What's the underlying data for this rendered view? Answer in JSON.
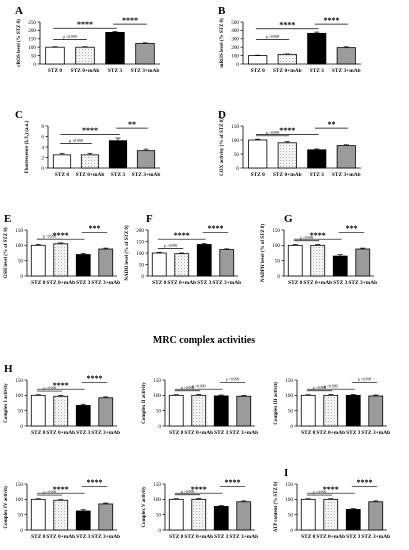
{
  "section_title": "MRC complex activities",
  "chart_data": [
    {
      "type": "bar",
      "panel": "A",
      "ylabel": "cROS level (% STZ 0)",
      "ylim": [
        0,
        250
      ],
      "yticks": [
        0,
        50,
        100,
        150,
        200,
        250
      ],
      "categories": [
        "STZ 0",
        "STZ 0+mAb",
        "STZ 3",
        "STZ 3+mAb"
      ],
      "values": [
        100,
        100,
        188,
        122
      ],
      "errors": [
        3,
        3,
        5,
        4
      ],
      "comparisons": [
        {
          "from": 0,
          "to": 1,
          "label": "p >0.999"
        },
        {
          "from": 0,
          "to": 2,
          "label": "****"
        },
        {
          "from": 2,
          "to": 3,
          "label": "****"
        }
      ]
    },
    {
      "type": "bar",
      "panel": "B",
      "ylabel": "mROS level (% STZ 0)",
      "ylim": [
        0,
        500
      ],
      "yticks": [
        0,
        100,
        200,
        300,
        400,
        500
      ],
      "categories": [
        "STZ 0",
        "STZ 0+mAb",
        "STZ 3",
        "STZ 3+mAb"
      ],
      "values": [
        100,
        115,
        365,
        195
      ],
      "errors": [
        5,
        6,
        15,
        10
      ],
      "comparisons": [
        {
          "from": 0,
          "to": 1,
          "label": "p >0.999"
        },
        {
          "from": 0,
          "to": 2,
          "label": "****"
        },
        {
          "from": 2,
          "to": 3,
          "label": "****"
        }
      ]
    },
    {
      "type": "bar",
      "panel": "C",
      "ylabel": "Fluorescence (Iₑ/I₅) (a.u.)",
      "ylim": [
        0,
        8
      ],
      "yticks": [
        0,
        2,
        4,
        6,
        8
      ],
      "categories": [
        "STZ 0",
        "STZ 0+mAb",
        "STZ 3",
        "STZ 3+mAb"
      ],
      "values": [
        2.5,
        2.5,
        5.2,
        3.3
      ],
      "errors": [
        0.3,
        0.3,
        0.5,
        0.3
      ],
      "comparisons": [
        {
          "from": 0,
          "to": 1,
          "label": "p >0.999"
        },
        {
          "from": 0,
          "to": 2,
          "label": "****"
        },
        {
          "from": 2,
          "to": 3,
          "label": "**"
        }
      ]
    },
    {
      "type": "bar",
      "panel": "D",
      "ylabel": "COX activity (% of STZ 0)",
      "ylim": [
        0,
        150
      ],
      "yticks": [
        0,
        50,
        100,
        150
      ],
      "categories": [
        "STZ 0",
        "STZ 0+mAb",
        "STZ 3",
        "STZ 3+mAb"
      ],
      "values": [
        100,
        90,
        65,
        80
      ],
      "errors": [
        3,
        4,
        3,
        3
      ],
      "comparisons": [
        {
          "from": 0,
          "to": 1,
          "label": "p >0.999"
        },
        {
          "from": 0,
          "to": 2,
          "label": "****"
        },
        {
          "from": 2,
          "to": 3,
          "label": "**"
        }
      ]
    },
    {
      "type": "bar",
      "panel": "E",
      "ylabel": "GSH level (% of STZ 0)",
      "ylim": [
        0,
        150
      ],
      "yticks": [
        0,
        50,
        100,
        150
      ],
      "categories": [
        "STZ 0",
        "STZ 0+mAb",
        "STZ 3",
        "STZ 3+mAb"
      ],
      "values": [
        100,
        105,
        70,
        88
      ],
      "errors": [
        3,
        3,
        4,
        3
      ],
      "comparisons": [
        {
          "from": 0,
          "to": 1,
          "label": "p >0.999"
        },
        {
          "from": 0,
          "to": 2,
          "label": "****"
        },
        {
          "from": 2,
          "to": 3,
          "label": "***"
        }
      ]
    },
    {
      "type": "bar",
      "panel": "F",
      "ylabel": "NADH level (% of STZ 0)",
      "ylim": [
        0,
        200
      ],
      "yticks": [
        0,
        50,
        100,
        150,
        200
      ],
      "categories": [
        "STZ 0",
        "STZ 0+mAb",
        "STZ 3",
        "STZ 3+mAb"
      ],
      "values": [
        100,
        97,
        137,
        115
      ],
      "errors": [
        3,
        3,
        4,
        3
      ],
      "comparisons": [
        {
          "from": 0,
          "to": 1,
          "label": "p >0.999"
        },
        {
          "from": 0,
          "to": 2,
          "label": "****"
        },
        {
          "from": 2,
          "to": 3,
          "label": "****"
        }
      ]
    },
    {
      "type": "bar",
      "panel": "G",
      "ylabel": "NADPH level (% of STZ 0)",
      "ylim": [
        0,
        150
      ],
      "yticks": [
        0,
        50,
        100,
        150
      ],
      "categories": [
        "STZ 0",
        "STZ 0+mAb",
        "STZ 3",
        "STZ 3+mAb"
      ],
      "values": [
        100,
        100,
        65,
        88
      ],
      "errors": [
        3,
        3,
        5,
        3
      ],
      "comparisons": [
        {
          "from": 0,
          "to": 1,
          "label": "p >0.999"
        },
        {
          "from": 0,
          "to": 2,
          "label": "****"
        },
        {
          "from": 2,
          "to": 3,
          "label": "***"
        }
      ]
    },
    {
      "type": "bar",
      "panel": "H",
      "ylabel": "Complex I activity",
      "ylim": [
        0,
        150
      ],
      "yticks": [
        0,
        50,
        100,
        150
      ],
      "categories": [
        "STZ 0",
        "STZ 0+mAb",
        "STZ 3",
        "STZ 3+mAb"
      ],
      "values": [
        100,
        97,
        67,
        92
      ],
      "errors": [
        2,
        3,
        4,
        3
      ],
      "comparisons": [
        {
          "from": 0,
          "to": 1,
          "label": "p >0.999"
        },
        {
          "from": 0,
          "to": 2,
          "label": "****"
        },
        {
          "from": 2,
          "to": 3,
          "label": "****"
        }
      ]
    },
    {
      "type": "bar",
      "panel": "",
      "ylabel": "Complex II activity",
      "ylim": [
        0,
        150
      ],
      "yticks": [
        0,
        50,
        100,
        150
      ],
      "categories": [
        "STZ 0",
        "STZ 0+mAb",
        "STZ 3",
        "STZ 3+mAb"
      ],
      "values": [
        100,
        100,
        98,
        97
      ],
      "errors": [
        2,
        3,
        3,
        3
      ],
      "comparisons": [
        {
          "from": 0,
          "to": 1,
          "label": "p >0.999"
        },
        {
          "from": 0,
          "to": 2,
          "label": "p >0.999"
        },
        {
          "from": 2,
          "to": 3,
          "label": "p >0.999"
        }
      ]
    },
    {
      "type": "bar",
      "panel": "",
      "ylabel": "Complex III activity",
      "ylim": [
        0,
        150
      ],
      "yticks": [
        0,
        50,
        100,
        150
      ],
      "categories": [
        "STZ 0",
        "STZ 0+mAb",
        "STZ 3",
        "STZ 3+mAb"
      ],
      "values": [
        100,
        100,
        100,
        98
      ],
      "errors": [
        2,
        3,
        3,
        3
      ],
      "comparisons": [
        {
          "from": 0,
          "to": 1,
          "label": "p >0.999"
        },
        {
          "from": 0,
          "to": 2,
          "label": "p >0.999"
        },
        {
          "from": 2,
          "to": 3,
          "label": "p >0.999"
        }
      ]
    },
    {
      "type": "bar",
      "panel": "",
      "ylabel": "Complex IV activity",
      "ylim": [
        0,
        150
      ],
      "yticks": [
        0,
        50,
        100,
        150
      ],
      "categories": [
        "STZ 0",
        "STZ 0+mAb",
        "STZ 3",
        "STZ 3+mAb"
      ],
      "values": [
        100,
        97,
        62,
        85
      ],
      "errors": [
        2,
        2,
        4,
        3
      ],
      "comparisons": [
        {
          "from": 0,
          "to": 1,
          "label": "p >0.999"
        },
        {
          "from": 0,
          "to": 2,
          "label": "****"
        },
        {
          "from": 2,
          "to": 3,
          "label": "****"
        }
      ]
    },
    {
      "type": "bar",
      "panel": "",
      "ylabel": "Complex V activity",
      "ylim": [
        0,
        150
      ],
      "yticks": [
        0,
        50,
        100,
        150
      ],
      "categories": [
        "STZ 0",
        "STZ 0+mAb",
        "STZ 3",
        "STZ 3+mAb"
      ],
      "values": [
        100,
        100,
        77,
        92
      ],
      "errors": [
        2,
        3,
        3,
        3
      ],
      "comparisons": [
        {
          "from": 0,
          "to": 1,
          "label": "p >0.999"
        },
        {
          "from": 0,
          "to": 2,
          "label": "****"
        },
        {
          "from": 2,
          "to": 3,
          "label": "****"
        }
      ]
    },
    {
      "type": "bar",
      "panel": "I",
      "ylabel": "ATP content (% STZ 0)",
      "ylim": [
        0,
        150
      ],
      "yticks": [
        0,
        50,
        100,
        150
      ],
      "categories": [
        "STZ 0",
        "STZ 0+mAb",
        "STZ 3",
        "STZ 3+mAb"
      ],
      "values": [
        100,
        100,
        67,
        92
      ],
      "errors": [
        2,
        2,
        3,
        3
      ],
      "comparisons": [
        {
          "from": 0,
          "to": 1,
          "label": "p >0.999"
        },
        {
          "from": 0,
          "to": 2,
          "label": "****"
        },
        {
          "from": 2,
          "to": 3,
          "label": "****"
        }
      ]
    }
  ]
}
